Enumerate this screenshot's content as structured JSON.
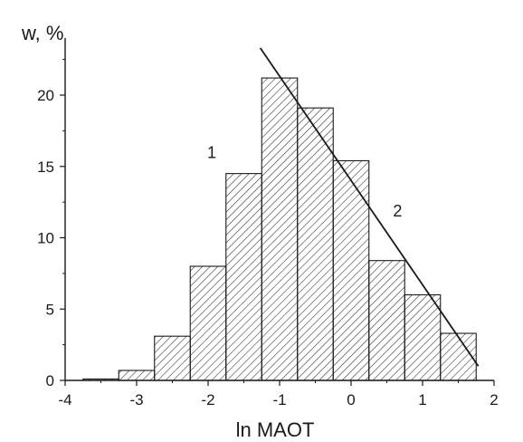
{
  "chart_data": {
    "type": "bar",
    "xlabel": "ln MAOT",
    "ylabel": "w, %",
    "xlim": [
      -4,
      2
    ],
    "ylim": [
      0,
      24
    ],
    "x_ticks": [
      -4,
      -3,
      -2,
      -1,
      0,
      1,
      2
    ],
    "y_ticks": [
      0,
      5,
      10,
      15,
      20
    ],
    "bin_width": 0.5,
    "bins": [
      {
        "x_start": -3.75,
        "x_end": -3.25,
        "value": 0.1
      },
      {
        "x_start": -3.25,
        "x_end": -2.75,
        "value": 0.7
      },
      {
        "x_start": -2.75,
        "x_end": -2.25,
        "value": 3.1
      },
      {
        "x_start": -2.25,
        "x_end": -1.75,
        "value": 8.0
      },
      {
        "x_start": -1.75,
        "x_end": -1.25,
        "value": 14.5
      },
      {
        "x_start": -1.25,
        "x_end": -0.75,
        "value": 21.2
      },
      {
        "x_start": -0.75,
        "x_end": -0.25,
        "value": 19.1
      },
      {
        "x_start": -0.25,
        "x_end": 0.25,
        "value": 15.4
      },
      {
        "x_start": 0.25,
        "x_end": 0.75,
        "value": 8.4
      },
      {
        "x_start": 0.75,
        "x_end": 1.25,
        "value": 6.0
      },
      {
        "x_start": 1.25,
        "x_end": 1.75,
        "value": 3.3
      }
    ],
    "fit_line": {
      "x": [
        -1.27,
        1.78
      ],
      "y": [
        23.3,
        1.0
      ]
    },
    "annotations": [
      {
        "text": "1",
        "x": -1.95,
        "y": 15.6
      },
      {
        "text": "2",
        "x": 0.65,
        "y": 11.5
      }
    ],
    "grid": false,
    "colors": {
      "bar_fill": "#ffffff",
      "hatch": "#2a2a2a",
      "axis": "#1a1a1a",
      "line": "#1a1a1a"
    }
  }
}
